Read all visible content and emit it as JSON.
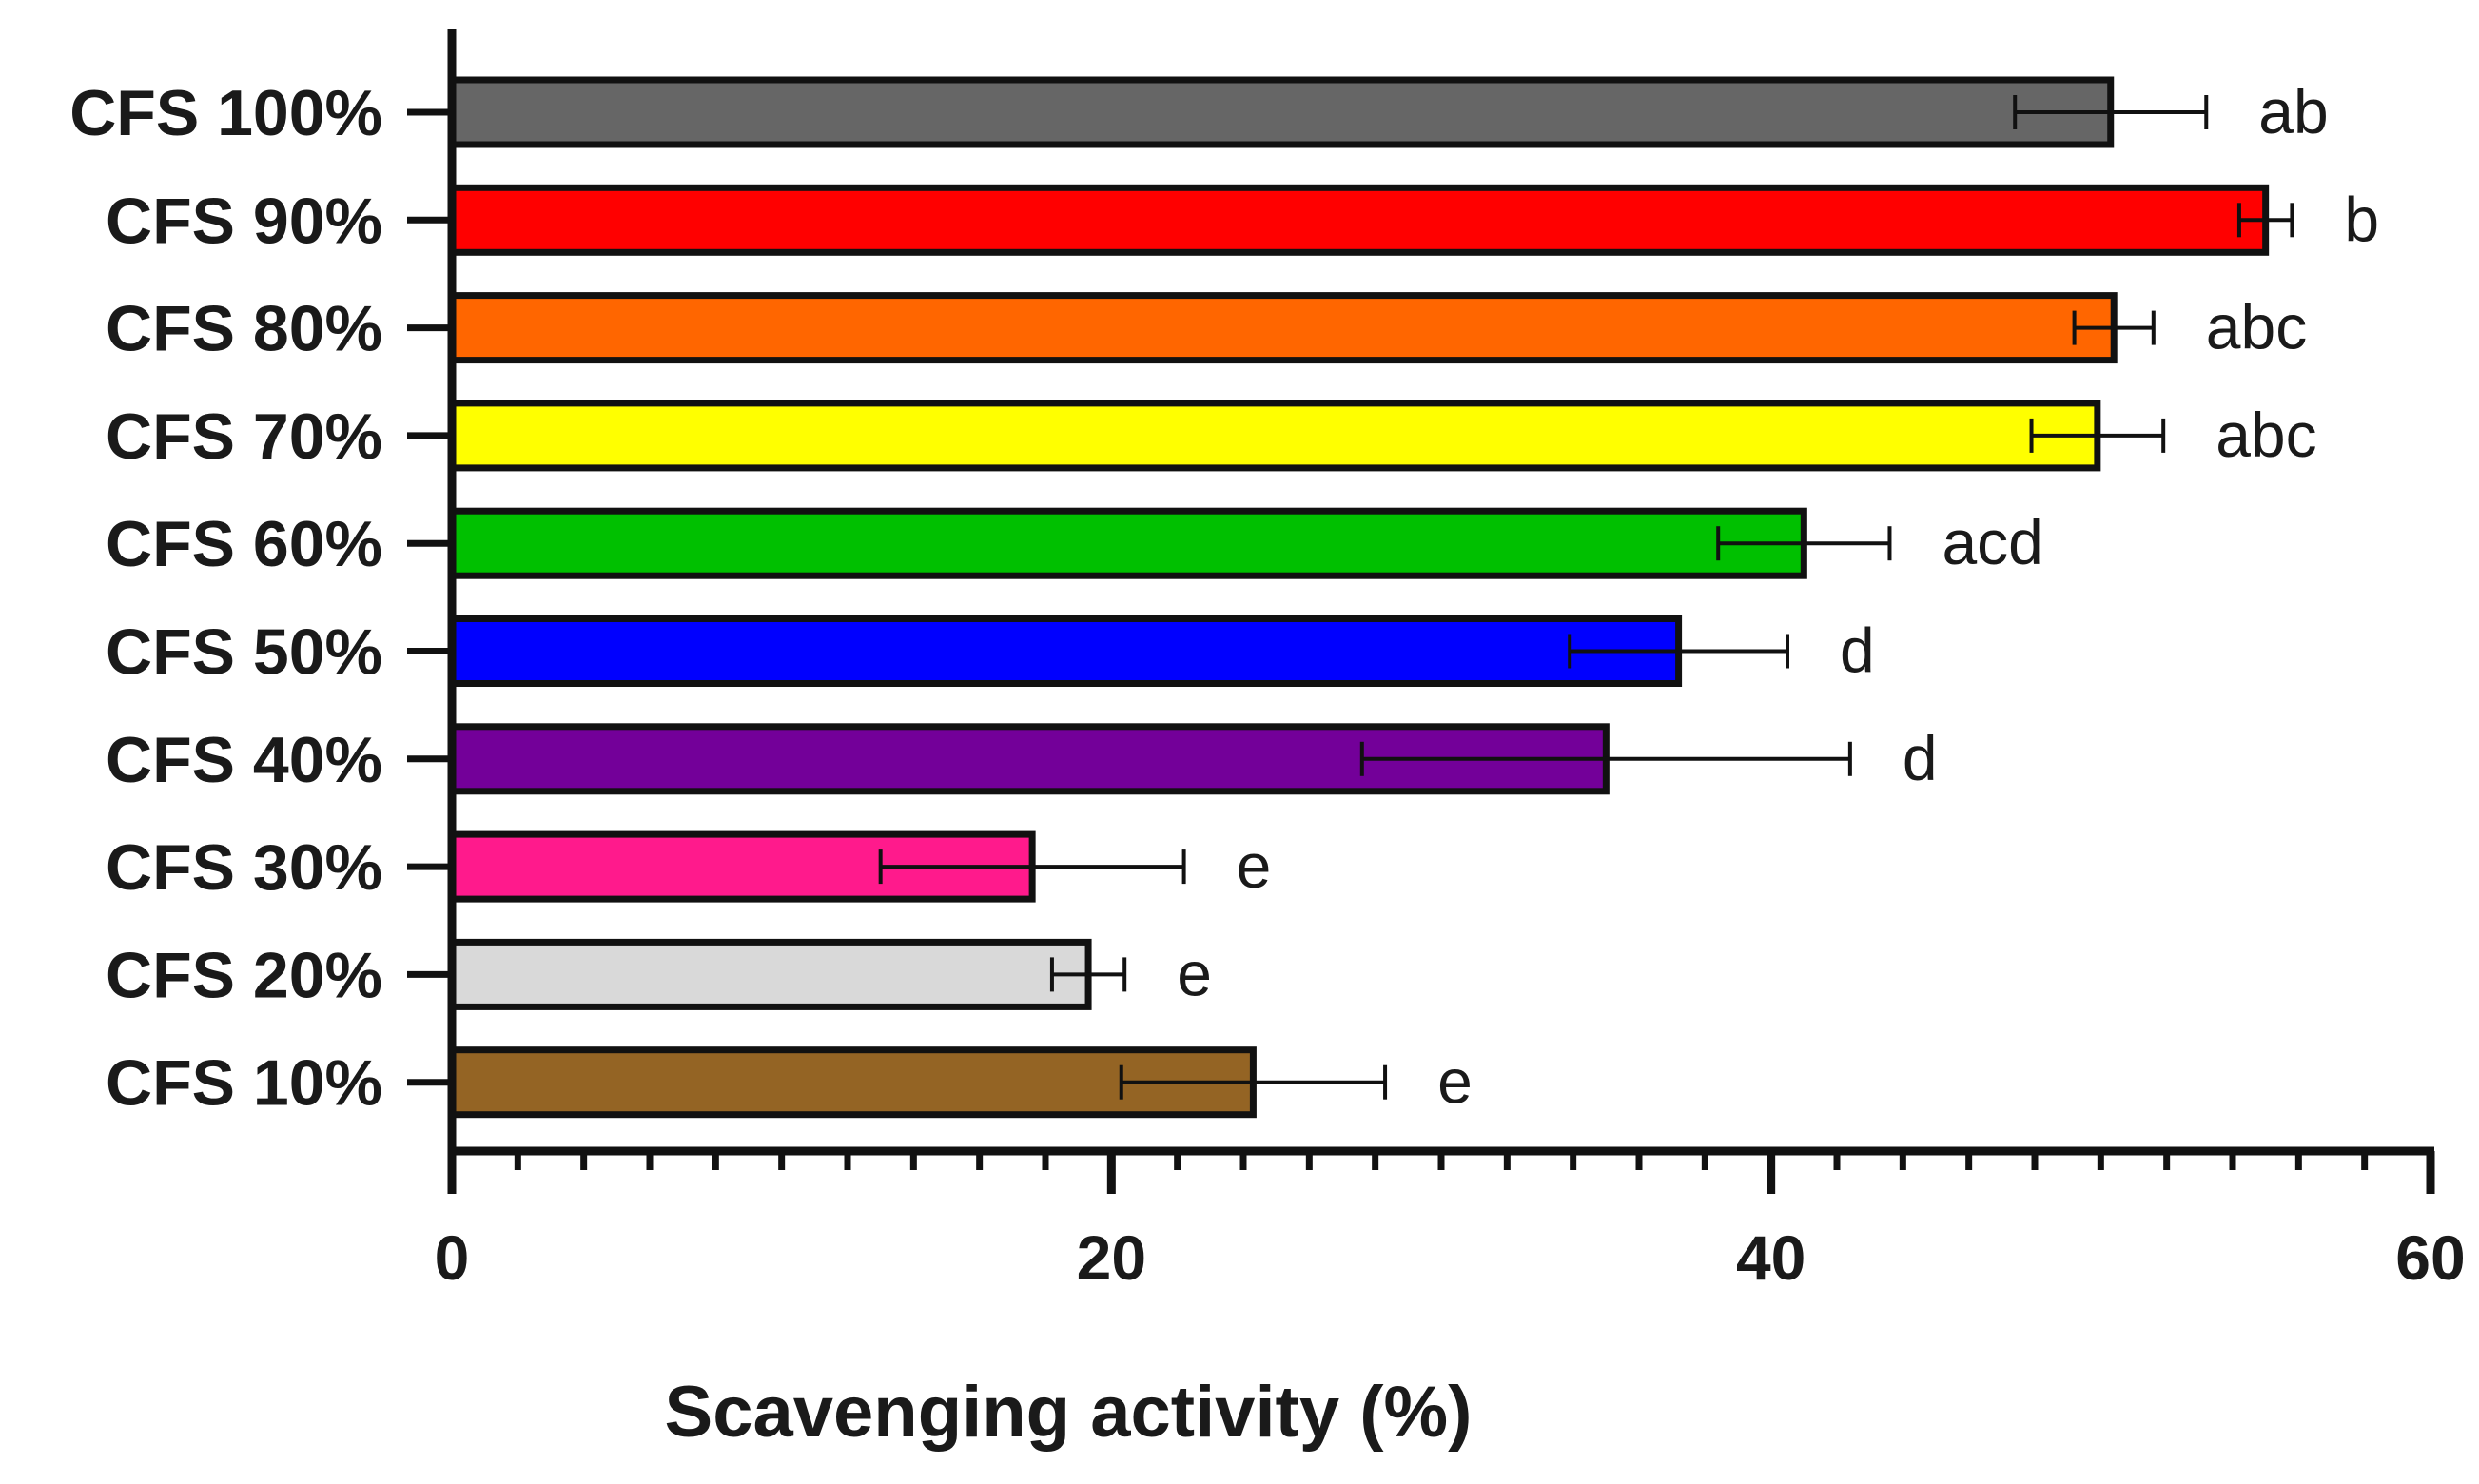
{
  "chart_data": {
    "type": "bar",
    "orientation": "horizontal",
    "title": "",
    "xlabel": "Scavenging activity (%)",
    "ylabel": "",
    "xlim": [
      0,
      60
    ],
    "x_major_ticks": [
      0,
      20,
      40,
      60
    ],
    "x_minor_step": 2,
    "grid": false,
    "categories": [
      "CFS 100%",
      "CFS 90%",
      "CFS 80%",
      "CFS 70%",
      "CFS 60%",
      "CFS 50%",
      "CFS 40%",
      "CFS 30%",
      "CFS 20%",
      "CFS 10%"
    ],
    "values": [
      50.3,
      55.0,
      50.4,
      49.9,
      41.0,
      37.2,
      35.0,
      17.6,
      19.3,
      24.3
    ],
    "errors": [
      2.9,
      0.8,
      1.2,
      2.0,
      2.6,
      3.3,
      7.4,
      4.6,
      1.1,
      4.0
    ],
    "significance": [
      "ab",
      "b",
      "abc",
      "abc",
      "acd",
      "d",
      "d",
      "e",
      "e",
      "e"
    ],
    "colors": [
      "#666666",
      "#ff0000",
      "#ff6600",
      "#ffff00",
      "#00c000",
      "#0000ff",
      "#730099",
      "#ff1a8c",
      "#d9d9d9",
      "#946424"
    ]
  }
}
